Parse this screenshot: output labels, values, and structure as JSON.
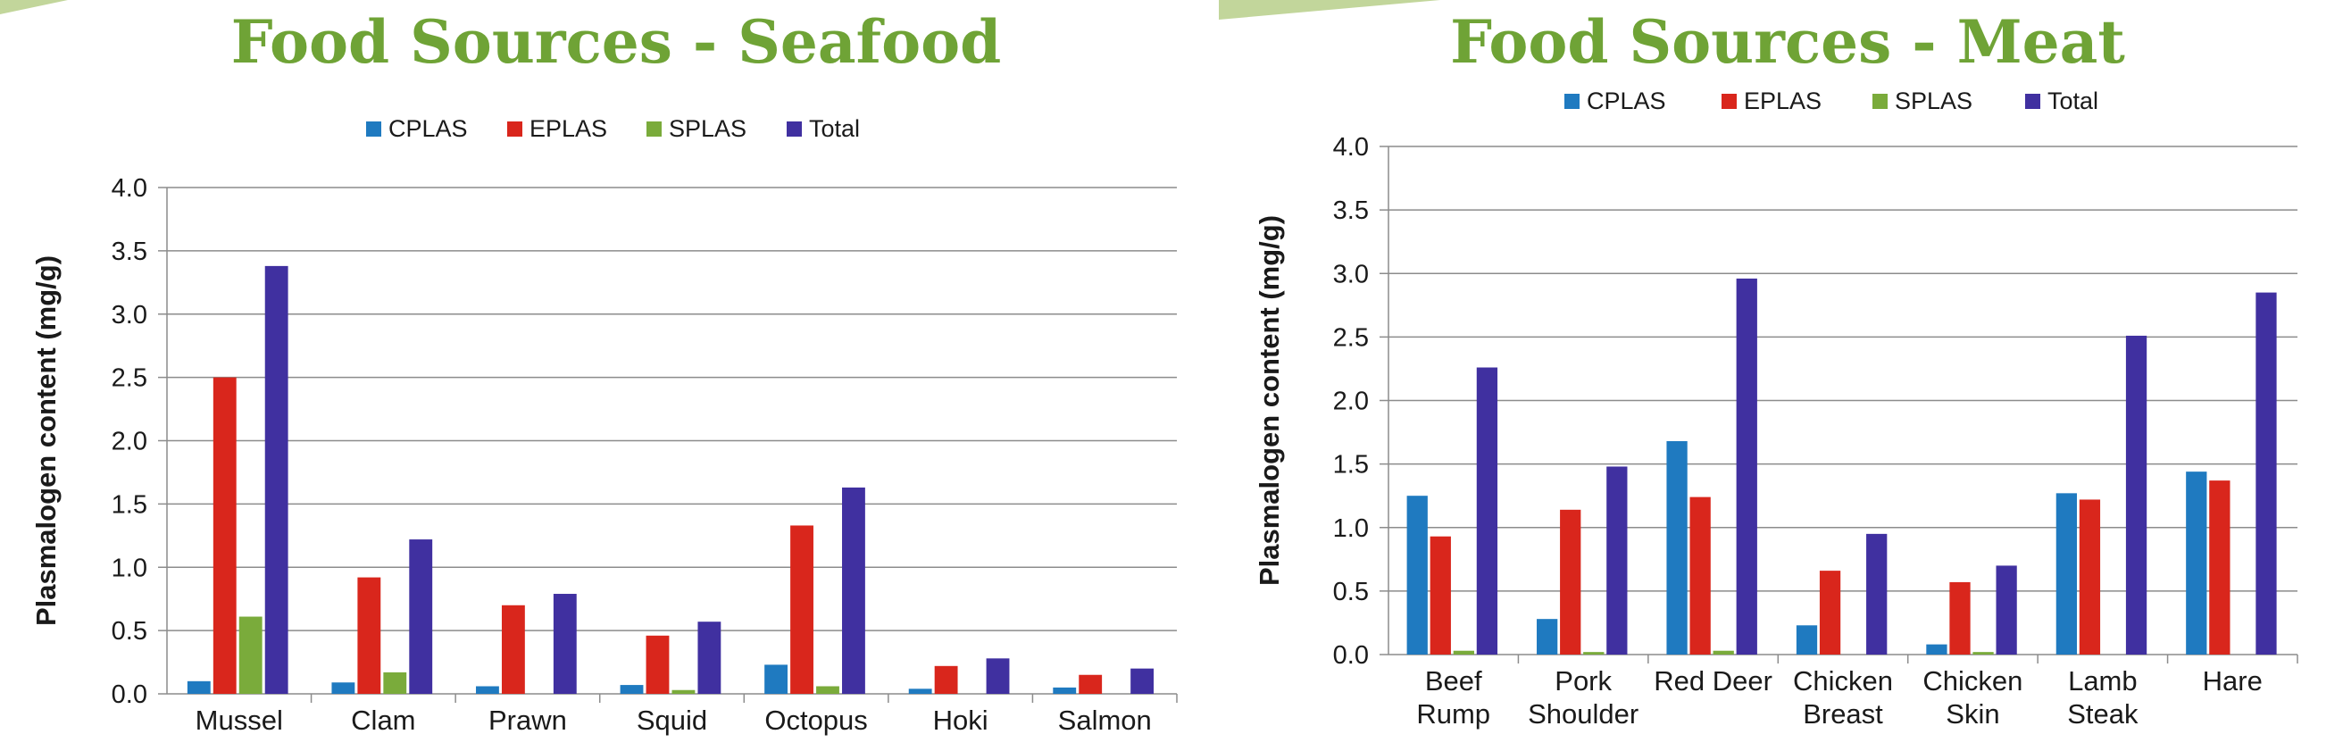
{
  "colors": {
    "title": "#6fa336",
    "deco": "#c2d69b",
    "CPLAS": "#1f7ac0",
    "EPLAS": "#d9261c",
    "SPLAS": "#7aab3b",
    "Total": "#4030a0"
  },
  "chart_data": [
    {
      "type": "bar",
      "title": "Food Sources - Seafood",
      "xlabel": "",
      "ylabel": "Plasmalogen content (mg/g)",
      "ylim": [
        0,
        4.0
      ],
      "yticks": [
        "0.0",
        "0.5",
        "1.0",
        "1.5",
        "2.0",
        "2.5",
        "3.0",
        "3.5",
        "4.0"
      ],
      "legend_position": "top-center",
      "grid": true,
      "categories": [
        [
          "Mussel"
        ],
        [
          "Clam"
        ],
        [
          "Prawn"
        ],
        [
          "Squid"
        ],
        [
          "Octopus"
        ],
        [
          "Hoki"
        ],
        [
          "Salmon"
        ]
      ],
      "series": [
        {
          "name": "CPLAS",
          "values": [
            0.1,
            0.09,
            0.06,
            0.07,
            0.23,
            0.04,
            0.05
          ]
        },
        {
          "name": "EPLAS",
          "values": [
            2.5,
            0.92,
            0.7,
            0.46,
            1.33,
            0.22,
            0.15
          ]
        },
        {
          "name": "SPLAS",
          "values": [
            0.61,
            0.17,
            0.0,
            0.03,
            0.06,
            0.0,
            0.0
          ]
        },
        {
          "name": "Total",
          "values": [
            3.38,
            1.22,
            0.79,
            0.57,
            1.63,
            0.28,
            0.2
          ]
        }
      ]
    },
    {
      "type": "bar",
      "title": "Food Sources - Meat",
      "xlabel": "",
      "ylabel": "Plasmalogen content (mg/g)",
      "ylim": [
        0,
        4.0
      ],
      "yticks": [
        "0.0",
        "0.5",
        "1.0",
        "1.5",
        "2.0",
        "2.5",
        "3.0",
        "3.5",
        "4.0"
      ],
      "legend_position": "top-center",
      "grid": true,
      "categories": [
        [
          "Beef",
          "Rump"
        ],
        [
          "Pork",
          "Shoulder"
        ],
        [
          "Red Deer"
        ],
        [
          "Chicken",
          "Breast"
        ],
        [
          "Chicken",
          "Skin"
        ],
        [
          "Lamb",
          "Steak"
        ],
        [
          "Hare"
        ]
      ],
      "series": [
        {
          "name": "CPLAS",
          "values": [
            1.25,
            0.28,
            1.68,
            0.23,
            0.08,
            1.27,
            1.44
          ]
        },
        {
          "name": "EPLAS",
          "values": [
            0.93,
            1.14,
            1.24,
            0.66,
            0.57,
            1.22,
            1.37
          ]
        },
        {
          "name": "SPLAS",
          "values": [
            0.03,
            0.02,
            0.03,
            0.0,
            0.02,
            0.0,
            0.0
          ]
        },
        {
          "name": "Total",
          "values": [
            2.26,
            1.48,
            2.96,
            0.95,
            0.7,
            2.51,
            2.85
          ]
        }
      ]
    }
  ]
}
